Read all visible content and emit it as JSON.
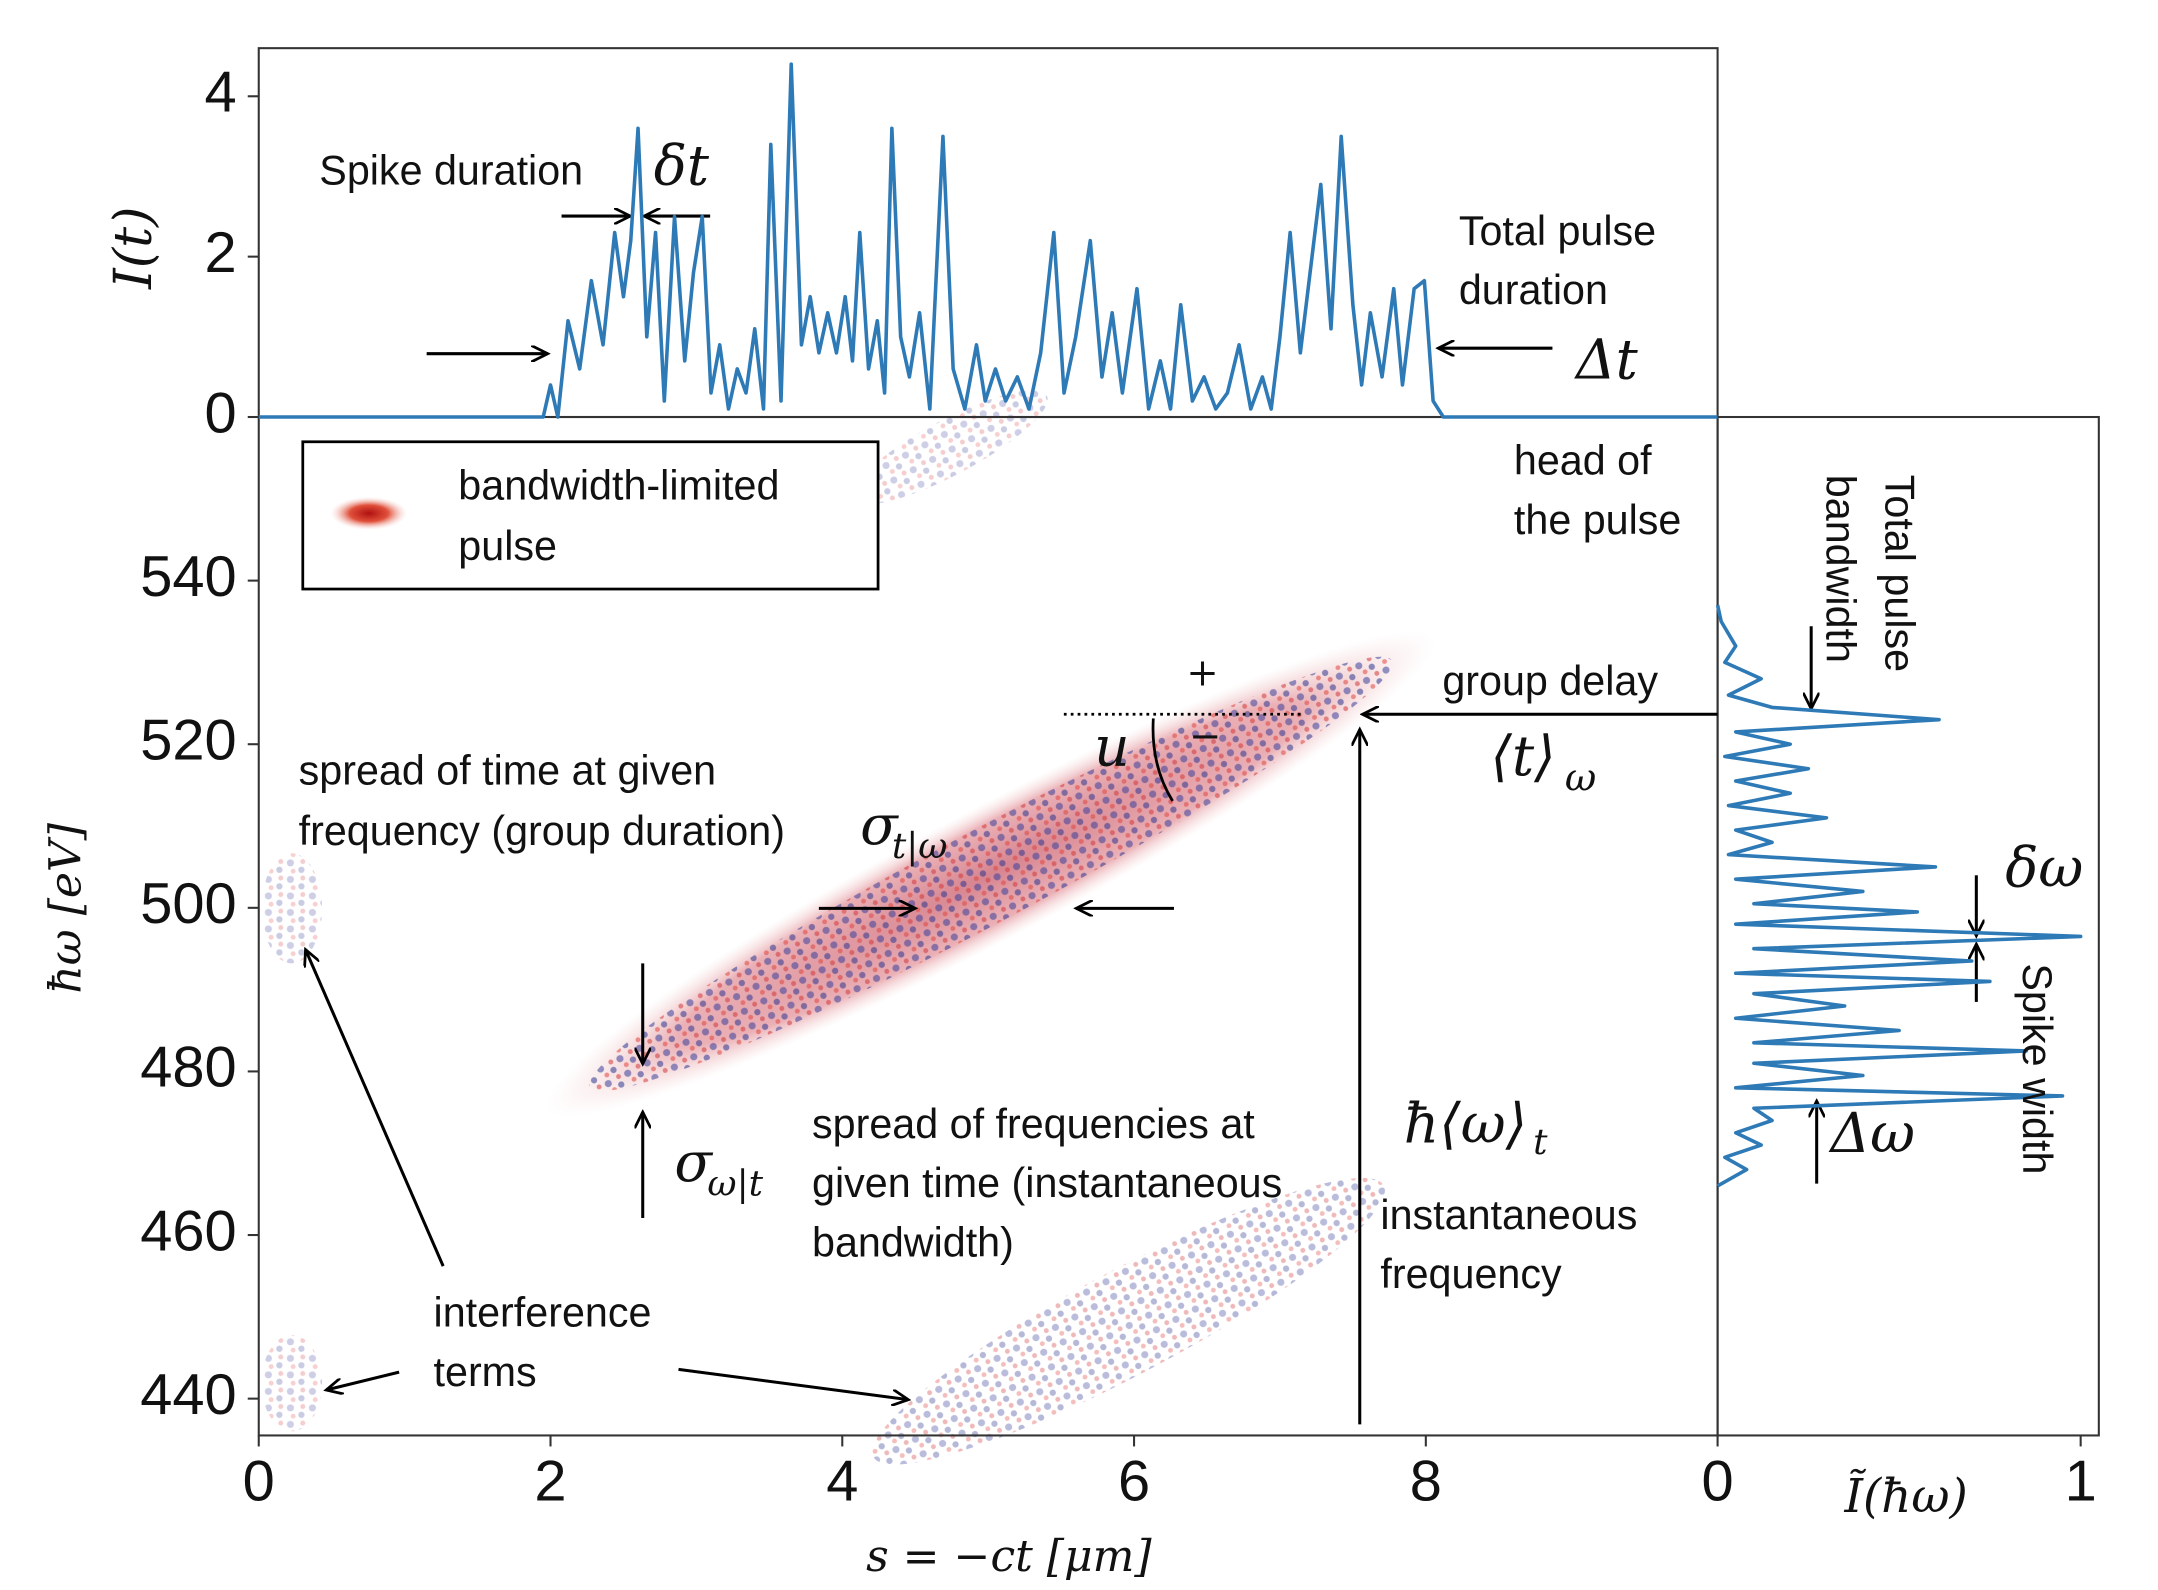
{
  "chart_data": [
    {
      "type": "line",
      "ylabel": "I(t)",
      "color": "#2e7ab6",
      "xlim": [
        0,
        10
      ],
      "ylim": [
        0,
        4.6
      ],
      "yticks": [
        0,
        2,
        4
      ],
      "x": [
        0,
        1.95,
        2.0,
        2.05,
        2.12,
        2.2,
        2.28,
        2.36,
        2.44,
        2.5,
        2.55,
        2.6,
        2.66,
        2.72,
        2.78,
        2.85,
        2.92,
        2.98,
        3.04,
        3.1,
        3.16,
        3.22,
        3.28,
        3.34,
        3.4,
        3.46,
        3.51,
        3.58,
        3.65,
        3.72,
        3.78,
        3.84,
        3.9,
        3.96,
        4.02,
        4.07,
        4.12,
        4.18,
        4.24,
        4.29,
        4.34,
        4.4,
        4.46,
        4.53,
        4.6,
        4.69,
        4.76,
        4.84,
        4.92,
        4.98,
        5.05,
        5.12,
        5.2,
        5.28,
        5.36,
        5.45,
        5.52,
        5.6,
        5.7,
        5.78,
        5.85,
        5.92,
        6.02,
        6.1,
        6.18,
        6.25,
        6.32,
        6.4,
        6.48,
        6.56,
        6.64,
        6.72,
        6.8,
        6.88,
        6.94,
        7.0,
        7.07,
        7.14,
        7.2,
        7.28,
        7.35,
        7.42,
        7.5,
        7.56,
        7.62,
        7.7,
        7.78,
        7.84,
        7.92,
        7.99,
        8.05,
        8.12,
        10
      ],
      "values": [
        0,
        0,
        0.4,
        0,
        1.2,
        0.6,
        1.7,
        0.9,
        2.3,
        1.5,
        2.2,
        3.6,
        1.0,
        2.3,
        0.2,
        2.5,
        0.7,
        1.8,
        2.5,
        0.3,
        0.9,
        0.1,
        0.6,
        0.3,
        1.1,
        0.1,
        3.4,
        0.2,
        4.4,
        0.9,
        1.5,
        0.8,
        1.3,
        0.8,
        1.5,
        0.7,
        2.3,
        0.6,
        1.2,
        0.3,
        3.6,
        1.0,
        0.5,
        1.3,
        0.1,
        3.5,
        0.6,
        0.1,
        0.9,
        0.2,
        0.6,
        0.2,
        0.5,
        0.1,
        0.8,
        2.3,
        0.3,
        1.0,
        2.2,
        0.5,
        1.3,
        0.3,
        1.6,
        0.1,
        0.7,
        0.1,
        1.4,
        0.2,
        0.5,
        0.1,
        0.3,
        0.9,
        0.1,
        0.5,
        0.1,
        1.0,
        2.3,
        0.8,
        1.7,
        2.9,
        1.1,
        3.5,
        1.4,
        0.4,
        1.3,
        0.5,
        1.6,
        0.4,
        1.6,
        1.7,
        0.2,
        0,
        0
      ],
      "annotations": [
        "Spike duration",
        "δt",
        "Total pulse",
        "duration",
        "Δt"
      ]
    },
    {
      "type": "wigner",
      "xlabel": "s = −ct [μm]",
      "ylabel": "ħω [eV]",
      "xlim": [
        0,
        10
      ],
      "ylim": [
        435.5,
        560
      ],
      "xticks": [
        0,
        2,
        4,
        6,
        8
      ],
      "yticks": [
        440,
        460,
        480,
        500,
        520,
        540
      ],
      "annotations": [
        "head of",
        "the pulse",
        "bandwidth-limited",
        "pulse",
        "group delay",
        "⟨t⟩",
        "ω",
        "+",
        "−",
        "u",
        "spread of time at given",
        "frequency (group duration)",
        "σ",
        "t|ω",
        "spread of frequencies at",
        "given time (instantaneous",
        "bandwidth)",
        "σ",
        "ω|t",
        "ħ⟨ω⟩",
        "t",
        "instantaneous",
        "frequency",
        "interference",
        "terms"
      ]
    },
    {
      "type": "line",
      "orientation": "horizontal",
      "xlabel": "Ĩ(ħω)",
      "color": "#2e7ab6",
      "xlim": [
        0,
        1.05
      ],
      "xticks": [
        0,
        1
      ],
      "ylim": [
        435.5,
        560
      ],
      "y": [
        537,
        535,
        532,
        530,
        528,
        526,
        524.5,
        523,
        521.5,
        520,
        518.5,
        517,
        515.5,
        514,
        512.5,
        511,
        509.5,
        508,
        506.5,
        505,
        503.5,
        502,
        500.5,
        499.5,
        498,
        496.5,
        495,
        493.5,
        492,
        491,
        489.5,
        488,
        486.5,
        485,
        483.5,
        482.5,
        481,
        479.5,
        478,
        477,
        475.5,
        474,
        472.5,
        471,
        469.5,
        468,
        466
      ],
      "values": [
        0,
        0.01,
        0.05,
        0.02,
        0.12,
        0.03,
        0.15,
        0.61,
        0.05,
        0.2,
        0.02,
        0.25,
        0.05,
        0.2,
        0.03,
        0.3,
        0.05,
        0.15,
        0.03,
        0.6,
        0.05,
        0.4,
        0.1,
        0.55,
        0.05,
        1.0,
        0.1,
        0.7,
        0.05,
        0.75,
        0.1,
        0.35,
        0.05,
        0.5,
        0.1,
        0.85,
        0.1,
        0.4,
        0.05,
        0.95,
        0.1,
        0.15,
        0.05,
        0.12,
        0.02,
        0.08,
        0
      ],
      "annotations": [
        "Total pulse",
        "bandwidth",
        "δω",
        "Δω",
        "Spike width"
      ]
    }
  ]
}
